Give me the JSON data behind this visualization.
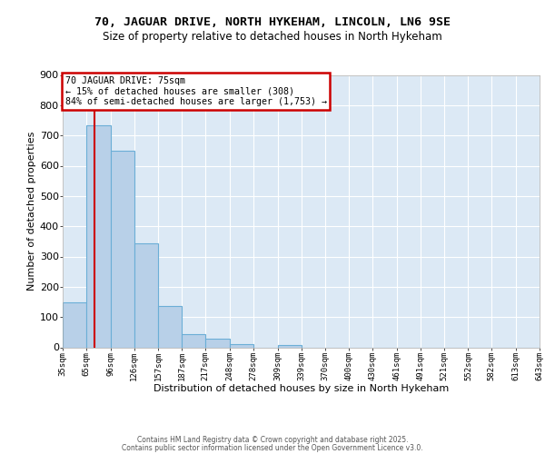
{
  "title1": "70, JAGUAR DRIVE, NORTH HYKEHAM, LINCOLN, LN6 9SE",
  "title2": "Size of property relative to detached houses in North Hykeham",
  "xlabel": "Distribution of detached houses by size in North Hykeham",
  "ylabel": "Number of detached properties",
  "bar_left_edges": [
    35,
    65,
    96,
    126,
    157,
    187,
    217,
    248,
    278,
    309,
    339,
    370,
    400,
    430,
    461,
    491,
    521,
    552,
    582,
    613
  ],
  "bar_right_edges": [
    65,
    96,
    126,
    157,
    187,
    217,
    248,
    278,
    309,
    339,
    370,
    400,
    430,
    461,
    491,
    521,
    552,
    582,
    613,
    643
  ],
  "bar_heights": [
    150,
    735,
    650,
    343,
    137,
    45,
    30,
    12,
    0,
    8,
    0,
    0,
    0,
    0,
    0,
    0,
    0,
    0,
    0,
    0
  ],
  "bar_color": "#b8d0e8",
  "bar_edge_color": "#6baed6",
  "xlim_left": 35,
  "xlim_right": 643,
  "ylim_top": 900,
  "ylim_bottom": 0,
  "xtick_labels": [
    "35sqm",
    "65sqm",
    "96sqm",
    "126sqm",
    "157sqm",
    "187sqm",
    "217sqm",
    "248sqm",
    "278sqm",
    "309sqm",
    "339sqm",
    "370sqm",
    "400sqm",
    "430sqm",
    "461sqm",
    "491sqm",
    "521sqm",
    "552sqm",
    "582sqm",
    "613sqm",
    "643sqm"
  ],
  "xtick_positions": [
    35,
    65,
    96,
    126,
    157,
    187,
    217,
    248,
    278,
    309,
    339,
    370,
    400,
    430,
    461,
    491,
    521,
    552,
    582,
    613,
    643
  ],
  "ytick_positions": [
    0,
    100,
    200,
    300,
    400,
    500,
    600,
    700,
    800,
    900
  ],
  "property_size": 75,
  "vline_color": "#cc0000",
  "annotation_title": "70 JAGUAR DRIVE: 75sqm",
  "annotation_line2": "← 15% of detached houses are smaller (308)",
  "annotation_line3": "84% of semi-detached houses are larger (1,753) →",
  "annotation_box_edgecolor": "#cc0000",
  "fig_bg_color": "#ffffff",
  "plot_bg_color": "#dce9f5",
  "grid_color": "#ffffff",
  "footer1": "Contains HM Land Registry data © Crown copyright and database right 2025.",
  "footer2": "Contains public sector information licensed under the Open Government Licence v3.0."
}
